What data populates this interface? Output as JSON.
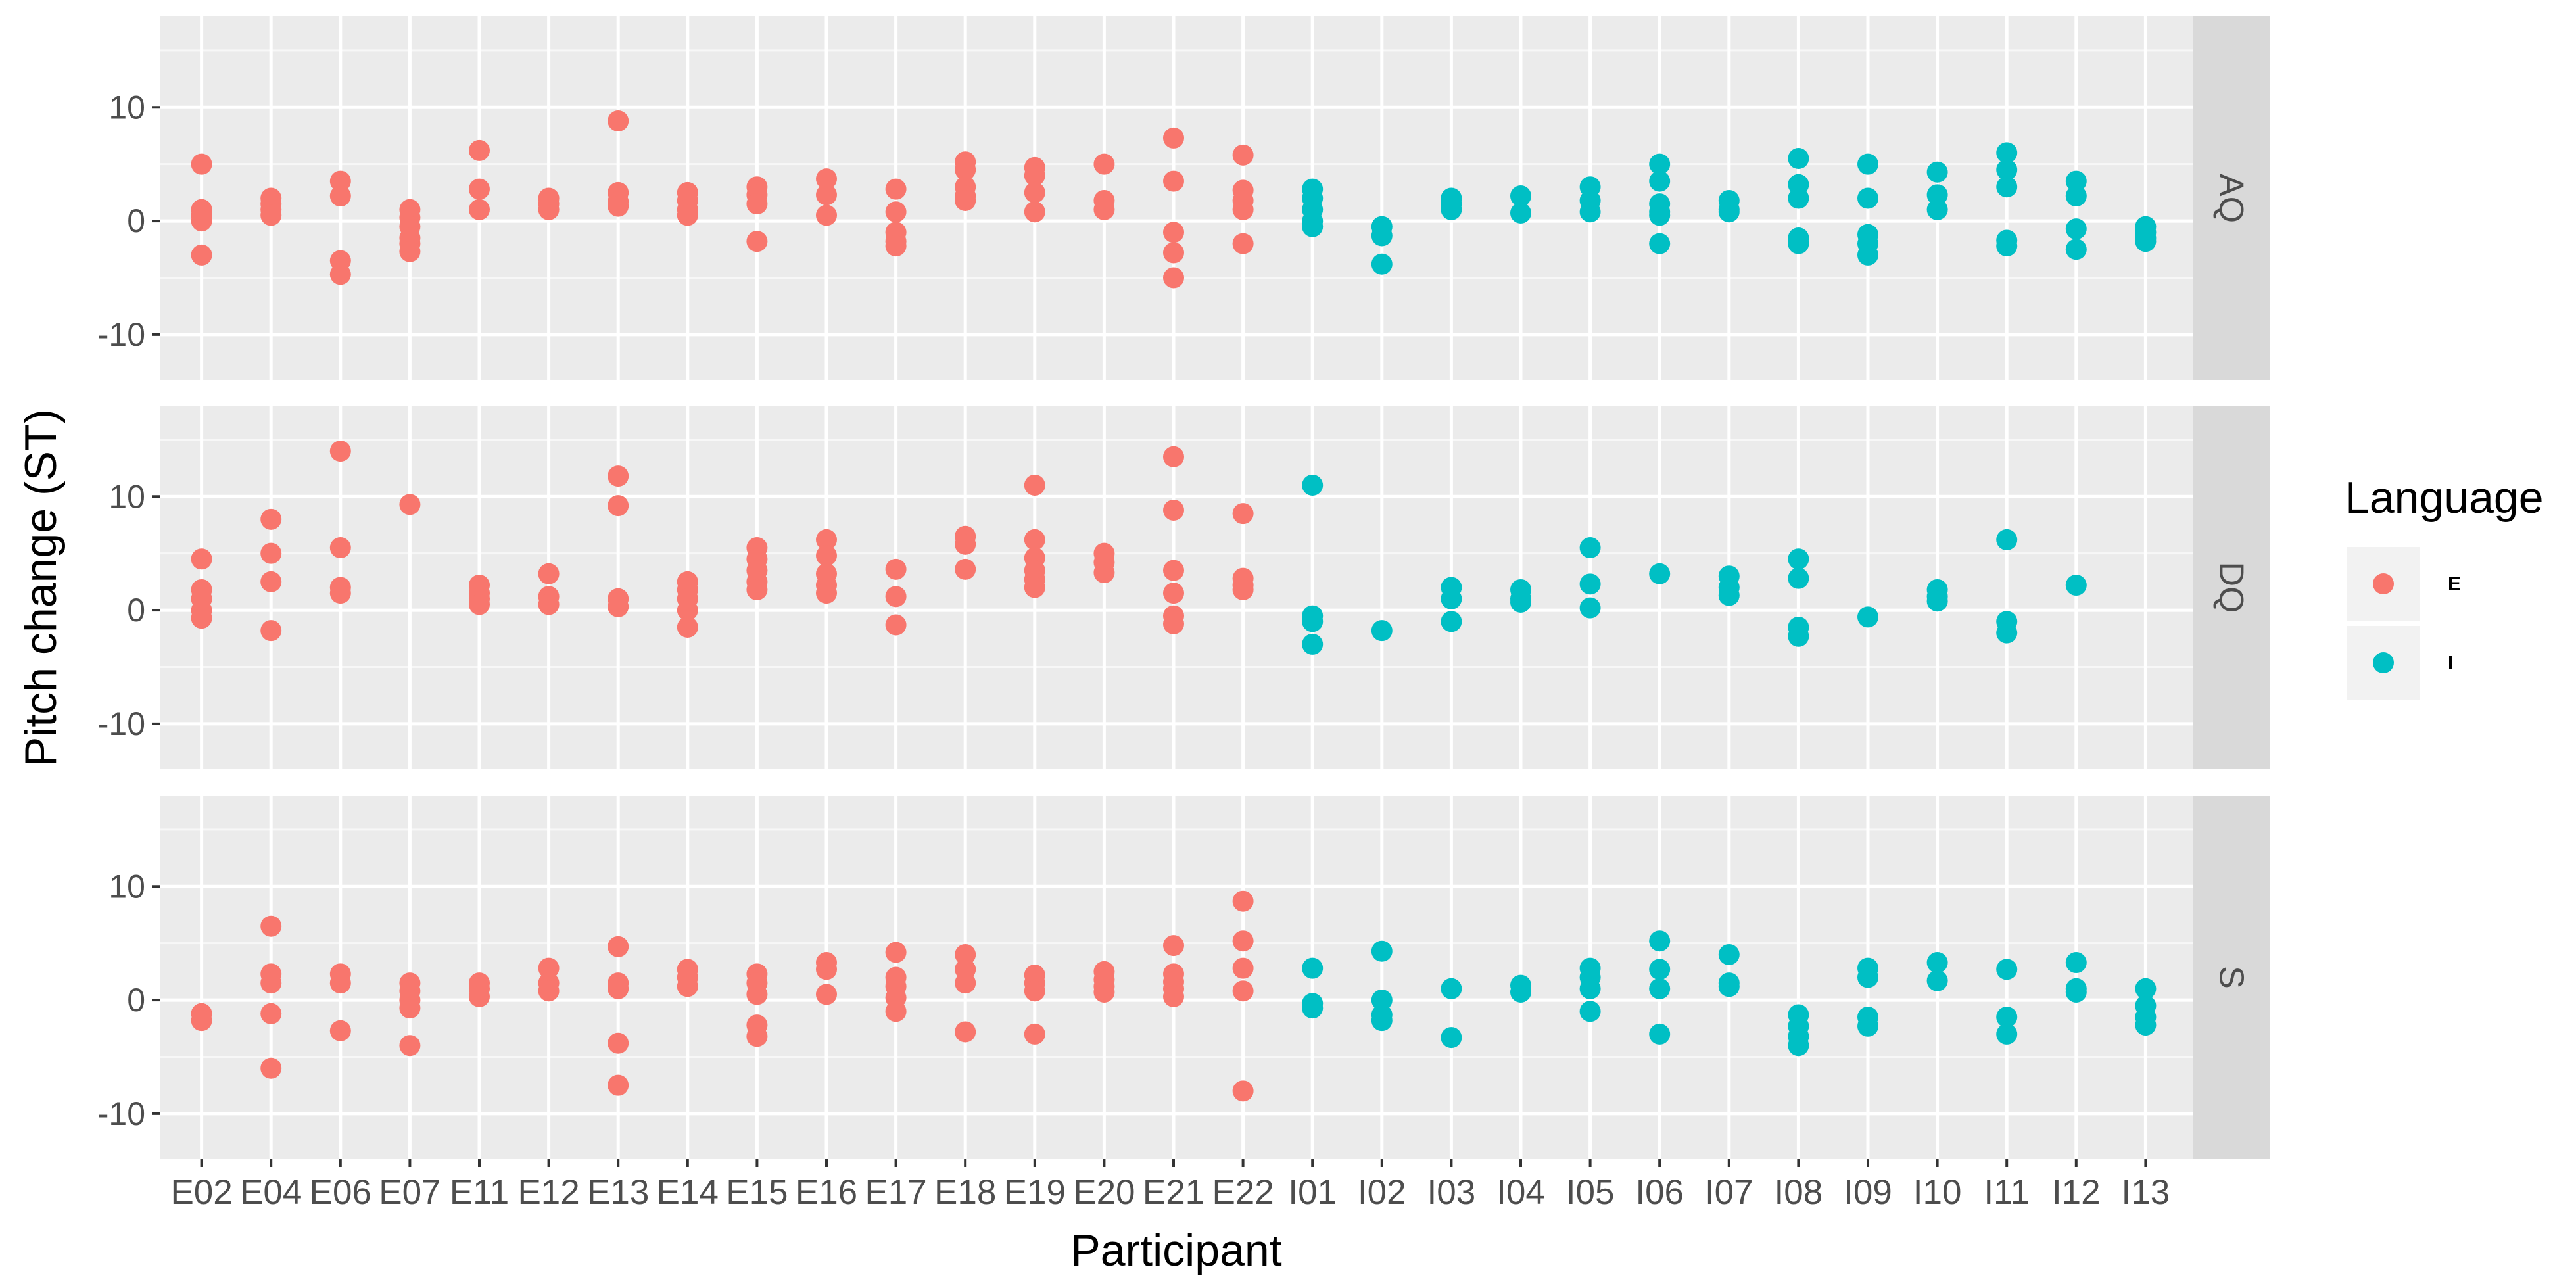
{
  "chart_data": {
    "type": "scatter",
    "xlabel": "Participant",
    "ylabel": "Pitch change (ST)",
    "ylim": [
      -14,
      18
    ],
    "yticks": [
      -10,
      0,
      10
    ],
    "grid": true,
    "legend": {
      "title": "Language",
      "placement": "right",
      "entries": [
        {
          "key": "E",
          "label": "E",
          "color": "#F8766D"
        },
        {
          "key": "I",
          "label": "I",
          "color": "#00BFC4"
        }
      ]
    },
    "categories": [
      "E02",
      "E04",
      "E06",
      "E07",
      "E11",
      "E12",
      "E13",
      "E14",
      "E15",
      "E16",
      "E17",
      "E18",
      "E19",
      "E20",
      "E21",
      "E22",
      "I01",
      "I02",
      "I03",
      "I04",
      "I05",
      "I06",
      "I07",
      "I08",
      "I09",
      "I10",
      "I11",
      "I12",
      "I13"
    ],
    "panels": [
      {
        "label": "AQ",
        "points": {
          "E02": [
            5,
            1,
            0.5,
            0,
            -3
          ],
          "E04": [
            2,
            1.5,
            1,
            0.5
          ],
          "E06": [
            3.5,
            2.2,
            -3.5,
            -4.7
          ],
          "E07": [
            1,
            0.3,
            -0.5,
            -1.5,
            -2,
            -2.7
          ],
          "E11": [
            6.2,
            2.8,
            1
          ],
          "E12": [
            2,
            1.5,
            1
          ],
          "E13": [
            8.8,
            2.5,
            1.7,
            1.3
          ],
          "E14": [
            2.5,
            1.8,
            1,
            0.5
          ],
          "E15": [
            3,
            2.3,
            1.5,
            -1.8
          ],
          "E16": [
            3.7,
            2.3,
            0.5
          ],
          "E17": [
            2.8,
            0.8,
            -1,
            -1.8,
            -2.2
          ],
          "E18": [
            5.2,
            4.5,
            3,
            2.2,
            1.8
          ],
          "E19": [
            4.7,
            4,
            2.5,
            0.8
          ],
          "E20": [
            5,
            1.8,
            1
          ],
          "E21": [
            7.3,
            3.5,
            -1,
            -2.8,
            -5
          ],
          "E22": [
            5.8,
            2.7,
            1.8,
            1,
            -2
          ]
        },
        "points_I": {
          "I01": [
            2.8,
            2,
            1,
            0,
            -0.5
          ],
          "I02": [
            -0.5,
            -1.3,
            -3.8
          ],
          "I03": [
            2,
            1.5,
            1
          ],
          "I04": [
            2.2,
            0.7
          ],
          "I05": [
            3,
            1.8,
            0.8
          ],
          "I06": [
            5,
            3.5,
            1.5,
            0.8,
            0.5,
            -2
          ],
          "I07": [
            1.8,
            1,
            0.8
          ],
          "I08": [
            5.5,
            3.2,
            2,
            -1.5,
            -2
          ],
          "I09": [
            5,
            2,
            -1.2,
            -2,
            -3
          ],
          "I10": [
            4.3,
            2.3,
            1
          ],
          "I11": [
            6,
            4.5,
            3,
            -1.7,
            -2.2
          ],
          "I12": [
            3.5,
            2.2,
            -0.7,
            -2.5
          ],
          "I13": [
            -0.5,
            -1,
            -1.5,
            -1.8
          ]
        }
      },
      {
        "label": "DQ",
        "points": {
          "E02": [
            4.5,
            1.8,
            1,
            0,
            -0.7
          ],
          "E04": [
            8,
            5,
            2.5,
            -1.8
          ],
          "E06": [
            14,
            5.5,
            2,
            1.5
          ],
          "E07": [
            9.3
          ],
          "E11": [
            2.2,
            1.5,
            1,
            0.5
          ],
          "E12": [
            3.2,
            1.2,
            0.5
          ],
          "E13": [
            11.8,
            9.2,
            1,
            0.3
          ],
          "E14": [
            2.5,
            1.8,
            1,
            0,
            -1.5
          ],
          "E15": [
            5.5,
            4.5,
            3.5,
            2.5,
            1.8
          ],
          "E16": [
            6.2,
            4.8,
            3.2,
            2.2,
            1.5
          ],
          "E17": [
            3.6,
            1.2,
            -1.3
          ],
          "E18": [
            6.5,
            5.8,
            3.6
          ],
          "E19": [
            11,
            6.2,
            4.6,
            3.5,
            2.7,
            2
          ],
          "E20": [
            5,
            4.2,
            3.3
          ],
          "E21": [
            13.5,
            8.8,
            3.5,
            1.5,
            -0.5,
            -1.2
          ],
          "E22": [
            8.5,
            2.8,
            2.2,
            1.8
          ]
        },
        "points_I": {
          "I01": [
            11,
            -0.5,
            -1,
            -3
          ],
          "I02": [
            -1.8
          ],
          "I03": [
            2,
            1,
            -1
          ],
          "I04": [
            1.8,
            1,
            0.7
          ],
          "I05": [
            5.5,
            2.3,
            0.2
          ],
          "I06": [
            3.2
          ],
          "I07": [
            3,
            2,
            1.3
          ],
          "I08": [
            4.5,
            2.8,
            -1.5,
            -2.3
          ],
          "I09": [
            -0.6
          ],
          "I10": [
            1.8,
            1.2,
            0.8
          ],
          "I11": [
            6.2,
            -1,
            -2
          ],
          "I12": [
            2.2
          ],
          "I13": []
        }
      },
      {
        "label": "S",
        "points": {
          "E02": [
            -1.2,
            -1.8
          ],
          "E04": [
            6.5,
            2.3,
            1.5,
            -1.2,
            -6
          ],
          "E06": [
            2.3,
            1.5,
            -2.7
          ],
          "E07": [
            1.5,
            0.8,
            0,
            -0.7,
            -4
          ],
          "E11": [
            1.5,
            1,
            0.3
          ],
          "E12": [
            2.8,
            1.5,
            0.8
          ],
          "E13": [
            4.7,
            1.5,
            1,
            -3.8,
            -7.5
          ],
          "E14": [
            2.7,
            2,
            1.2
          ],
          "E15": [
            2.3,
            1.5,
            0.5,
            -2.2,
            -3.2
          ],
          "E16": [
            3.3,
            2.7,
            0.5
          ],
          "E17": [
            4.2,
            2,
            1.2,
            0.2,
            -1
          ],
          "E18": [
            4,
            2.7,
            1.5,
            -2.8
          ],
          "E19": [
            2.2,
            1.5,
            0.8,
            -3
          ],
          "E20": [
            2.5,
            1.8,
            1.2,
            0.7
          ],
          "E21": [
            4.8,
            2.3,
            1.6,
            1,
            0.3
          ],
          "E22": [
            8.7,
            5.2,
            2.8,
            0.8,
            -8
          ]
        },
        "points_I": {
          "I01": [
            2.8,
            -0.3,
            -0.7
          ],
          "I02": [
            4.3,
            0,
            -1.3,
            -1.8
          ],
          "I03": [
            1,
            -3.3
          ],
          "I04": [
            1.3,
            0.7
          ],
          "I05": [
            2.8,
            2,
            1,
            -1
          ],
          "I06": [
            5.2,
            2.7,
            1,
            -3
          ],
          "I07": [
            4,
            1.5,
            1.2
          ],
          "I08": [
            -1.3,
            -2.3,
            -3.2,
            -4
          ],
          "I09": [
            2.8,
            2,
            -1.5,
            -2.3
          ],
          "I10": [
            3.3,
            1.7
          ],
          "I11": [
            2.7,
            -1.5,
            -3
          ],
          "I12": [
            3.3,
            1,
            0.7
          ],
          "I13": [
            1,
            -0.5,
            -1.5,
            -2.2
          ]
        }
      }
    ]
  }
}
